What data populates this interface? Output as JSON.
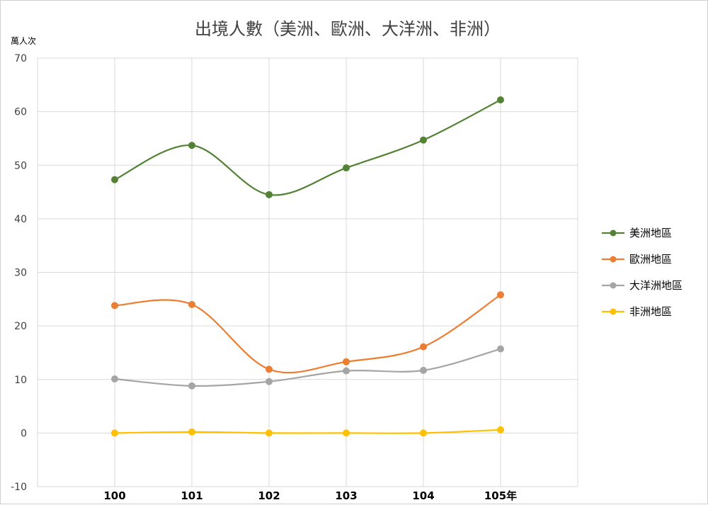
{
  "chart_data": {
    "type": "line",
    "title": "出境人數（美洲、歐洲、大洋洲、非洲）",
    "ylabel": "萬人次",
    "xlabel": "",
    "categories": [
      "100",
      "101",
      "102",
      "103",
      "104",
      "105年"
    ],
    "ylim": [
      -10,
      70
    ],
    "yticks": [
      -10,
      0,
      10,
      20,
      30,
      40,
      50,
      60,
      70
    ],
    "grid": true,
    "legend_position": "right",
    "series": [
      {
        "name": "美洲地區",
        "color": "#548235",
        "values": [
          47.3,
          53.7,
          44.5,
          49.5,
          54.7,
          62.2
        ]
      },
      {
        "name": "歐洲地區",
        "color": "#ed7d31",
        "values": [
          23.8,
          24.0,
          11.9,
          13.3,
          16.1,
          25.8
        ]
      },
      {
        "name": "大洋洲地區",
        "color": "#a5a5a5",
        "values": [
          10.1,
          8.8,
          9.6,
          11.6,
          11.7,
          15.7
        ]
      },
      {
        "name": "非洲地區",
        "color": "#ffc000",
        "values": [
          0.0,
          0.2,
          0.0,
          0.0,
          0.0,
          0.6
        ]
      }
    ]
  }
}
